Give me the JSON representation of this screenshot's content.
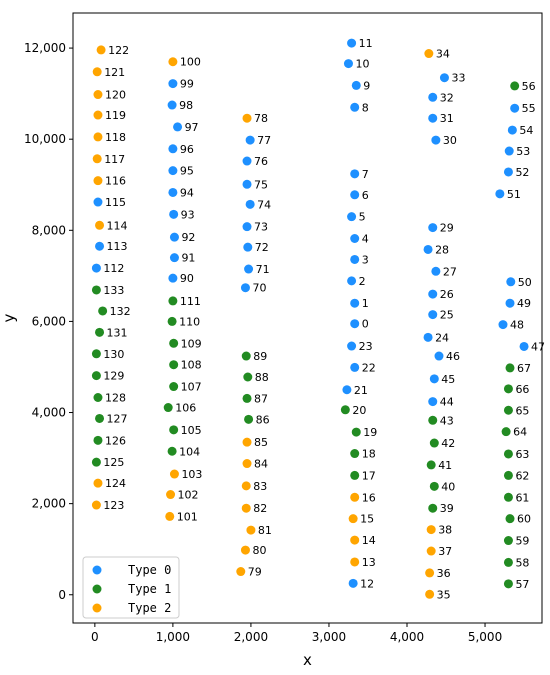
{
  "chart_data": {
    "type": "scatter",
    "xlabel": "x",
    "ylabel": "y",
    "xlim": [
      -280,
      5730
    ],
    "ylim": [
      -620,
      12770
    ],
    "x_ticks": [
      0,
      1000,
      2000,
      3000,
      4000,
      5000
    ],
    "x_tick_labels": [
      "0",
      "1,000",
      "2,000",
      "3,000",
      "4,000",
      "5,000"
    ],
    "y_ticks": [
      0,
      2000,
      4000,
      6000,
      8000,
      10000,
      12000
    ],
    "y_tick_labels": [
      "0",
      "2,000",
      "4,000",
      "6,000",
      "8,000",
      "10,000",
      "12,000"
    ],
    "grid": false,
    "legend_position": "lower-left",
    "colors": {
      "Type 0": "#1e90ff",
      "Type 1": "#228b22",
      "Type 2": "#ffa500"
    },
    "series": [
      {
        "name": "Type 0",
        "points": [
          {
            "id": "0",
            "x": 3330,
            "y": 5950
          },
          {
            "id": "1",
            "x": 3330,
            "y": 6400
          },
          {
            "id": "2",
            "x": 3290,
            "y": 6890
          },
          {
            "id": "3",
            "x": 3330,
            "y": 7360
          },
          {
            "id": "4",
            "x": 3330,
            "y": 7820
          },
          {
            "id": "5",
            "x": 3290,
            "y": 8300
          },
          {
            "id": "6",
            "x": 3330,
            "y": 8780
          },
          {
            "id": "7",
            "x": 3330,
            "y": 9240
          },
          {
            "id": "8",
            "x": 3330,
            "y": 10700
          },
          {
            "id": "9",
            "x": 3350,
            "y": 11180
          },
          {
            "id": "10",
            "x": 3250,
            "y": 11660
          },
          {
            "id": "11",
            "x": 3290,
            "y": 12110
          },
          {
            "id": "12",
            "x": 3310,
            "y": 250
          },
          {
            "id": "21",
            "x": 3230,
            "y": 4500
          },
          {
            "id": "22",
            "x": 3330,
            "y": 4990
          },
          {
            "id": "23",
            "x": 3290,
            "y": 5460
          },
          {
            "id": "24",
            "x": 4270,
            "y": 5650
          },
          {
            "id": "25",
            "x": 4330,
            "y": 6150
          },
          {
            "id": "26",
            "x": 4330,
            "y": 6600
          },
          {
            "id": "27",
            "x": 4370,
            "y": 7100
          },
          {
            "id": "28",
            "x": 4270,
            "y": 7580
          },
          {
            "id": "29",
            "x": 4330,
            "y": 8060
          },
          {
            "id": "30",
            "x": 4370,
            "y": 9980
          },
          {
            "id": "31",
            "x": 4330,
            "y": 10460
          },
          {
            "id": "32",
            "x": 4330,
            "y": 10920
          },
          {
            "id": "33",
            "x": 4480,
            "y": 11350
          },
          {
            "id": "44",
            "x": 4330,
            "y": 4240
          },
          {
            "id": "45",
            "x": 4350,
            "y": 4740
          },
          {
            "id": "46",
            "x": 4410,
            "y": 5240
          },
          {
            "id": "47",
            "x": 5500,
            "y": 5450
          },
          {
            "id": "48",
            "x": 5230,
            "y": 5930
          },
          {
            "id": "49",
            "x": 5320,
            "y": 6400
          },
          {
            "id": "50",
            "x": 5330,
            "y": 6870
          },
          {
            "id": "51",
            "x": 5190,
            "y": 8800
          },
          {
            "id": "52",
            "x": 5300,
            "y": 9280
          },
          {
            "id": "53",
            "x": 5310,
            "y": 9740
          },
          {
            "id": "54",
            "x": 5350,
            "y": 10200
          },
          {
            "id": "55",
            "x": 5380,
            "y": 10680
          },
          {
            "id": "70",
            "x": 1930,
            "y": 6740
          },
          {
            "id": "71",
            "x": 1970,
            "y": 7150
          },
          {
            "id": "72",
            "x": 1960,
            "y": 7630
          },
          {
            "id": "73",
            "x": 1950,
            "y": 8080
          },
          {
            "id": "74",
            "x": 1990,
            "y": 8570
          },
          {
            "id": "75",
            "x": 1950,
            "y": 9010
          },
          {
            "id": "76",
            "x": 1950,
            "y": 9520
          },
          {
            "id": "77",
            "x": 1990,
            "y": 9980
          },
          {
            "id": "90",
            "x": 1000,
            "y": 6950
          },
          {
            "id": "91",
            "x": 1020,
            "y": 7400
          },
          {
            "id": "92",
            "x": 1020,
            "y": 7850
          },
          {
            "id": "93",
            "x": 1010,
            "y": 8350
          },
          {
            "id": "94",
            "x": 1000,
            "y": 8830
          },
          {
            "id": "95",
            "x": 1000,
            "y": 9310
          },
          {
            "id": "96",
            "x": 1000,
            "y": 9790
          },
          {
            "id": "97",
            "x": 1060,
            "y": 10270
          },
          {
            "id": "98",
            "x": 990,
            "y": 10750
          },
          {
            "id": "99",
            "x": 1000,
            "y": 11220
          },
          {
            "id": "112",
            "x": 20,
            "y": 7170
          },
          {
            "id": "113",
            "x": 60,
            "y": 7650
          },
          {
            "id": "115",
            "x": 40,
            "y": 8620
          }
        ]
      },
      {
        "name": "Type 1",
        "points": [
          {
            "id": "17",
            "x": 3330,
            "y": 2620
          },
          {
            "id": "18",
            "x": 3330,
            "y": 3100
          },
          {
            "id": "19",
            "x": 3350,
            "y": 3570
          },
          {
            "id": "20",
            "x": 3210,
            "y": 4060
          },
          {
            "id": "39",
            "x": 4330,
            "y": 1900
          },
          {
            "id": "40",
            "x": 4350,
            "y": 2380
          },
          {
            "id": "41",
            "x": 4310,
            "y": 2850
          },
          {
            "id": "42",
            "x": 4350,
            "y": 3330
          },
          {
            "id": "43",
            "x": 4330,
            "y": 3830
          },
          {
            "id": "56",
            "x": 5380,
            "y": 11170
          },
          {
            "id": "57",
            "x": 5300,
            "y": 240
          },
          {
            "id": "58",
            "x": 5300,
            "y": 710
          },
          {
            "id": "59",
            "x": 5300,
            "y": 1190
          },
          {
            "id": "60",
            "x": 5320,
            "y": 1670
          },
          {
            "id": "61",
            "x": 5300,
            "y": 2140
          },
          {
            "id": "62",
            "x": 5300,
            "y": 2620
          },
          {
            "id": "63",
            "x": 5300,
            "y": 3090
          },
          {
            "id": "64",
            "x": 5270,
            "y": 3580
          },
          {
            "id": "65",
            "x": 5300,
            "y": 4050
          },
          {
            "id": "66",
            "x": 5300,
            "y": 4520
          },
          {
            "id": "67",
            "x": 5320,
            "y": 4980
          },
          {
            "id": "86",
            "x": 1970,
            "y": 3850
          },
          {
            "id": "87",
            "x": 1950,
            "y": 4310
          },
          {
            "id": "88",
            "x": 1960,
            "y": 4780
          },
          {
            "id": "89",
            "x": 1940,
            "y": 5240
          },
          {
            "id": "104",
            "x": 990,
            "y": 3150
          },
          {
            "id": "105",
            "x": 1010,
            "y": 3620
          },
          {
            "id": "106",
            "x": 940,
            "y": 4110
          },
          {
            "id": "107",
            "x": 1010,
            "y": 4570
          },
          {
            "id": "108",
            "x": 1010,
            "y": 5050
          },
          {
            "id": "109",
            "x": 1010,
            "y": 5520
          },
          {
            "id": "110",
            "x": 990,
            "y": 6000
          },
          {
            "id": "111",
            "x": 1000,
            "y": 6450
          },
          {
            "id": "125",
            "x": 20,
            "y": 2910
          },
          {
            "id": "126",
            "x": 40,
            "y": 3390
          },
          {
            "id": "127",
            "x": 60,
            "y": 3870
          },
          {
            "id": "128",
            "x": 40,
            "y": 4330
          },
          {
            "id": "129",
            "x": 20,
            "y": 4810
          },
          {
            "id": "130",
            "x": 20,
            "y": 5290
          },
          {
            "id": "131",
            "x": 60,
            "y": 5760
          },
          {
            "id": "132",
            "x": 100,
            "y": 6230
          },
          {
            "id": "133",
            "x": 20,
            "y": 6690
          }
        ]
      },
      {
        "name": "Type 2",
        "points": [
          {
            "id": "13",
            "x": 3330,
            "y": 720
          },
          {
            "id": "14",
            "x": 3330,
            "y": 1200
          },
          {
            "id": "15",
            "x": 3310,
            "y": 1670
          },
          {
            "id": "16",
            "x": 3330,
            "y": 2140
          },
          {
            "id": "34",
            "x": 4280,
            "y": 11880
          },
          {
            "id": "35",
            "x": 4290,
            "y": 10
          },
          {
            "id": "36",
            "x": 4290,
            "y": 480
          },
          {
            "id": "37",
            "x": 4310,
            "y": 960
          },
          {
            "id": "38",
            "x": 4310,
            "y": 1430
          },
          {
            "id": "78",
            "x": 1950,
            "y": 10460
          },
          {
            "id": "79",
            "x": 1870,
            "y": 510
          },
          {
            "id": "80",
            "x": 1930,
            "y": 980
          },
          {
            "id": "81",
            "x": 2000,
            "y": 1420
          },
          {
            "id": "82",
            "x": 1940,
            "y": 1900
          },
          {
            "id": "83",
            "x": 1940,
            "y": 2390
          },
          {
            "id": "84",
            "x": 1950,
            "y": 2880
          },
          {
            "id": "85",
            "x": 1950,
            "y": 3350
          },
          {
            "id": "100",
            "x": 1000,
            "y": 11700
          },
          {
            "id": "101",
            "x": 960,
            "y": 1720
          },
          {
            "id": "102",
            "x": 970,
            "y": 2200
          },
          {
            "id": "103",
            "x": 1020,
            "y": 2650
          },
          {
            "id": "114",
            "x": 60,
            "y": 8110
          },
          {
            "id": "116",
            "x": 40,
            "y": 9090
          },
          {
            "id": "117",
            "x": 30,
            "y": 9570
          },
          {
            "id": "118",
            "x": 40,
            "y": 10050
          },
          {
            "id": "119",
            "x": 40,
            "y": 10530
          },
          {
            "id": "120",
            "x": 40,
            "y": 10980
          },
          {
            "id": "121",
            "x": 30,
            "y": 11480
          },
          {
            "id": "122",
            "x": 80,
            "y": 11960
          },
          {
            "id": "123",
            "x": 20,
            "y": 1970
          },
          {
            "id": "124",
            "x": 40,
            "y": 2450
          }
        ]
      }
    ]
  }
}
